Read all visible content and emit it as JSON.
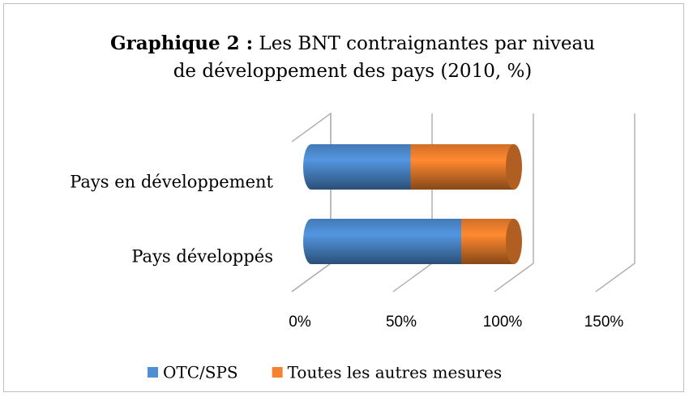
{
  "chart_data": {
    "type": "bar",
    "title": {
      "prefix": "Graphique 2 :",
      "text": "Les BNT contraignantes par niveau de développement des pays (2010, %)"
    },
    "categories": [
      "Pays en développement",
      "Pays développés"
    ],
    "series": [
      {
        "name": "OTC/SPS",
        "color": "#4f8fd6",
        "values": [
          49,
          74
        ]
      },
      {
        "name": "Toutes les autres mesures",
        "color": "#f5822e",
        "values": [
          51,
          26
        ]
      }
    ],
    "xlim": [
      0,
      150
    ],
    "xticks": [
      {
        "value": 0,
        "label": "0%"
      },
      {
        "value": 50,
        "label": "50%"
      },
      {
        "value": 100,
        "label": "100%"
      },
      {
        "value": 150,
        "label": "150%"
      }
    ],
    "grid": true,
    "stacked": true,
    "legend": "bottom"
  }
}
